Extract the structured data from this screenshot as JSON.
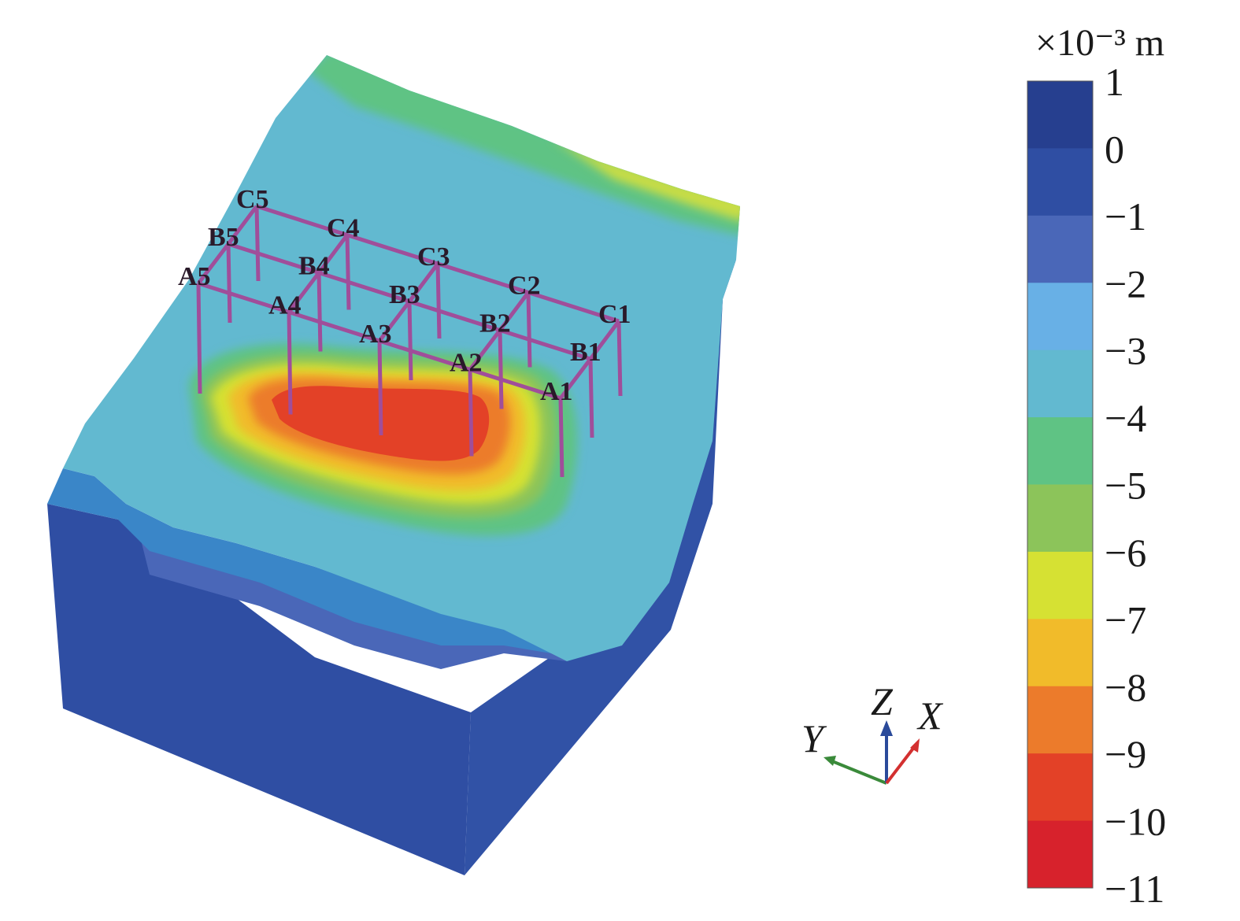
{
  "legend": {
    "unit": "×10⁻³ m",
    "ticks": [
      "1",
      "0",
      "−1",
      "−2",
      "−3",
      "−4",
      "−5",
      "−6",
      "−7",
      "−8",
      "−9",
      "−10",
      "−11"
    ],
    "band_colors": [
      "#263f8f",
      "#2f4ea3",
      "#4a67b8",
      "#68b0e6",
      "#62b9d0",
      "#5fc384",
      "#8cc45a",
      "#d6e133",
      "#f1bb2a",
      "#ec7b2b",
      "#e34127",
      "#d7222c"
    ]
  },
  "axes": {
    "x": "X",
    "y": "Y",
    "z": "Z"
  },
  "structure": {
    "axis_lines": [
      "A",
      "B",
      "C"
    ],
    "bays": [
      "1",
      "2",
      "3",
      "4",
      "5"
    ],
    "column_labels": [
      "A1",
      "A2",
      "A3",
      "A4",
      "A5",
      "B1",
      "B2",
      "B3",
      "B4",
      "B5",
      "C1",
      "C2",
      "C3",
      "C4",
      "C5"
    ],
    "member_color": "#a04e9a"
  }
}
